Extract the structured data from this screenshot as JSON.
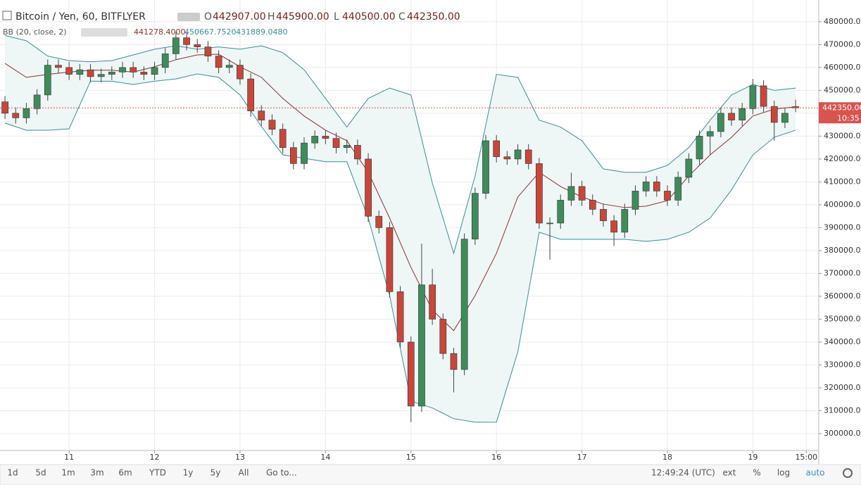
{
  "chart_data": {
    "type": "candlestick",
    "title": "Bitcoin / Yen, 60, BITFLYER",
    "ohlc_legend": [
      {
        "key": "O",
        "value": "442907.00"
      },
      {
        "key": "H",
        "value": "445900.00"
      },
      {
        "key": "L",
        "value": "440500.00"
      },
      {
        "key": "C",
        "value": "442350.00"
      }
    ],
    "indicator": {
      "name": "BB (20, close, 2)",
      "values": [
        "441278.4000",
        "450667.7520",
        "431889.0480"
      ]
    },
    "up_color": "#3f8b5c",
    "down_color": "#c8463b",
    "candles": {
      "x": [
        -18,
        -15,
        -12,
        -9,
        -6,
        -3,
        0,
        3,
        6,
        9,
        12,
        15,
        18,
        21,
        24,
        27,
        30,
        33,
        36,
        39,
        42,
        45,
        48,
        51,
        54,
        57,
        60,
        63,
        66,
        69,
        72,
        75,
        78,
        81,
        84,
        87,
        90,
        93,
        96,
        99,
        102,
        105,
        108,
        111,
        114,
        117,
        120,
        123,
        126,
        129,
        132,
        135,
        138,
        141,
        144,
        147,
        150,
        153,
        156,
        159,
        162,
        165,
        168,
        171,
        174,
        177,
        180,
        183,
        186,
        189,
        192,
        195,
        198,
        201,
        204
      ],
      "open": [
        445000,
        440000,
        438000,
        442000,
        448000,
        461000,
        460000,
        457000,
        459000,
        456000,
        457000,
        458000,
        460000,
        458000,
        457000,
        460000,
        466000,
        473000,
        470000,
        469000,
        465000,
        460000,
        461000,
        455000,
        441000,
        437000,
        433000,
        425000,
        418000,
        427000,
        430000,
        429000,
        425000,
        426000,
        420000,
        395000,
        390000,
        362000,
        340000,
        312000,
        365000,
        350000,
        335000,
        328000,
        385000,
        405000,
        428000,
        421000,
        420000,
        424000,
        418000,
        392000,
        392000,
        402000,
        408000,
        402000,
        398000,
        393000,
        388000,
        398000,
        406000,
        410000,
        406000,
        402000,
        412000,
        420000,
        430000,
        432000,
        440000,
        437000,
        442000,
        452000,
        443000,
        436000,
        442907
      ],
      "high": [
        447500,
        442500,
        444500,
        450500,
        463500,
        463500,
        462500,
        461500,
        461500,
        459500,
        460500,
        462500,
        462500,
        460500,
        462500,
        468500,
        475500,
        475500,
        472500,
        471500,
        467500,
        463500,
        463500,
        457500,
        443500,
        439500,
        435500,
        427500,
        429500,
        432500,
        432500,
        431500,
        428500,
        428500,
        422500,
        397500,
        392500,
        364500,
        342500,
        383000,
        372000,
        352500,
        337500,
        387500,
        407500,
        430500,
        430500,
        423500,
        426500,
        426500,
        420500,
        394500,
        404500,
        414000,
        410500,
        404500,
        400500,
        395500,
        400500,
        408500,
        412500,
        412500,
        408500,
        414500,
        422500,
        432500,
        434500,
        442500,
        442500,
        444500,
        455000,
        454500,
        445500,
        442500,
        445900
      ],
      "low": [
        437500,
        435500,
        435500,
        439500,
        445500,
        457500,
        454500,
        454500,
        453500,
        453500,
        454500,
        455500,
        455500,
        454500,
        454500,
        457500,
        463500,
        467500,
        466500,
        462500,
        457500,
        457500,
        452500,
        438500,
        434500,
        430500,
        422500,
        415500,
        415500,
        424500,
        426500,
        422500,
        422500,
        417500,
        392500,
        387500,
        359500,
        337500,
        305000,
        309500,
        347500,
        332500,
        318000,
        325500,
        382500,
        402500,
        418500,
        417500,
        417500,
        415500,
        389500,
        376000,
        389500,
        399500,
        399500,
        395500,
        390500,
        382000,
        385500,
        395500,
        403500,
        403500,
        399500,
        399500,
        409500,
        417500,
        422000,
        429500,
        434500,
        434500,
        439500,
        440500,
        428000,
        433500,
        440500
      ],
      "close": [
        440000,
        438000,
        442000,
        448000,
        461000,
        460000,
        457000,
        459000,
        456000,
        457000,
        458000,
        460000,
        458000,
        457000,
        460000,
        466000,
        473000,
        470000,
        469000,
        465000,
        460000,
        461000,
        455000,
        441000,
        437000,
        433000,
        425000,
        418000,
        427000,
        430000,
        429000,
        425000,
        426000,
        420000,
        395000,
        390000,
        362000,
        340000,
        312000,
        365000,
        350000,
        335000,
        328000,
        385000,
        405000,
        428000,
        421000,
        420000,
        424000,
        418000,
        392000,
        392000,
        402000,
        408000,
        402000,
        398000,
        393000,
        388000,
        398000,
        406000,
        410000,
        406000,
        402000,
        412000,
        420000,
        430000,
        432000,
        440000,
        437000,
        442000,
        452000,
        443000,
        436000,
        440000,
        442350
      ]
    },
    "bands": {
      "band_color": "#3a8f98",
      "basis_color": "#8e2f2f",
      "fill": "#eef6f6",
      "x": [
        -18,
        -12,
        -6,
        0,
        6,
        12,
        18,
        24,
        30,
        36,
        42,
        48,
        54,
        60,
        66,
        72,
        78,
        84,
        90,
        96,
        102,
        108,
        114,
        120,
        126,
        132,
        138,
        144,
        150,
        156,
        162,
        168,
        174,
        180,
        186,
        192,
        198,
        204
      ],
      "upper": [
        474000,
        471700,
        465000,
        463000,
        462500,
        463000,
        465500,
        468000,
        469500,
        468000,
        469000,
        468000,
        469500,
        466500,
        459000,
        446500,
        434000,
        446500,
        451000,
        448000,
        409500,
        378800,
        412600,
        457000,
        455700,
        437000,
        434000,
        428000,
        415700,
        414200,
        414200,
        417200,
        425000,
        437000,
        448000,
        452600,
        450000,
        451000
      ],
      "basis": [
        461800,
        455700,
        457000,
        458000,
        458800,
        458800,
        458000,
        460300,
        463400,
        465500,
        465800,
        460300,
        455700,
        446500,
        438800,
        432600,
        428000,
        414200,
        394200,
        372600,
        354000,
        345000,
        360300,
        378800,
        403400,
        414200,
        408000,
        403400,
        400300,
        398800,
        399400,
        401800,
        412600,
        421800,
        429500,
        438800,
        441800,
        442800
      ],
      "lower": [
        435700,
        432600,
        432600,
        433200,
        454000,
        454000,
        452600,
        454000,
        455000,
        457200,
        455700,
        448000,
        434200,
        421800,
        420300,
        418800,
        418800,
        394200,
        360300,
        314200,
        311200,
        306500,
        305000,
        305000,
        335700,
        388000,
        384900,
        384900,
        384900,
        384900,
        384000,
        384900,
        388000,
        394200,
        406500,
        421800,
        429500,
        432600
      ]
    },
    "last_price": {
      "value": 442350,
      "label": "442350.00",
      "countdown": "10:35",
      "color": "#d9534f"
    },
    "xlim": [
      -19.4,
      210.5
    ],
    "ylim": [
      292600,
      489500
    ],
    "xticks": [
      {
        "value": 0,
        "label": "11"
      },
      {
        "value": 24,
        "label": "12"
      },
      {
        "value": 48,
        "label": "13"
      },
      {
        "value": 72,
        "label": "14"
      },
      {
        "value": 96,
        "label": "15"
      },
      {
        "value": 120,
        "label": "16"
      },
      {
        "value": 144,
        "label": "17"
      },
      {
        "value": 168,
        "label": "18"
      },
      {
        "value": 192,
        "label": "19"
      },
      {
        "value": 207,
        "label": "15:00"
      }
    ],
    "yticks": [
      {
        "value": 300000,
        "label": "300000.00"
      },
      {
        "value": 310000,
        "label": "310000.00"
      },
      {
        "value": 320000,
        "label": "320000.00"
      },
      {
        "value": 330000,
        "label": "330000.00"
      },
      {
        "value": 340000,
        "label": "340000.00"
      },
      {
        "value": 350000,
        "label": "350000.00"
      },
      {
        "value": 360000,
        "label": "360000.00"
      },
      {
        "value": 370000,
        "label": "370000.00"
      },
      {
        "value": 380000,
        "label": "380000.00"
      },
      {
        "value": 390000,
        "label": "390000.00"
      },
      {
        "value": 400000,
        "label": "400000.00"
      },
      {
        "value": 410000,
        "label": "410000.00"
      },
      {
        "value": 420000,
        "label": "420000.00"
      },
      {
        "value": 430000,
        "label": "430000.00"
      },
      {
        "value": 440000,
        "label": "440000.00"
      },
      {
        "value": 450000,
        "label": "450000.00"
      },
      {
        "value": 460000,
        "label": "460000.00"
      },
      {
        "value": 470000,
        "label": "470000.00"
      },
      {
        "value": 480000,
        "label": "480000.00"
      }
    ],
    "grid": true,
    "toolbar": {
      "ranges": [
        "1d",
        "5d",
        "1m",
        "3m",
        "6m",
        "YTD",
        "1y",
        "5y",
        "All"
      ],
      "goto": "Go to...",
      "time": "12:49:24 (UTC)",
      "options": [
        "ext",
        "%",
        "log",
        "auto"
      ]
    }
  }
}
